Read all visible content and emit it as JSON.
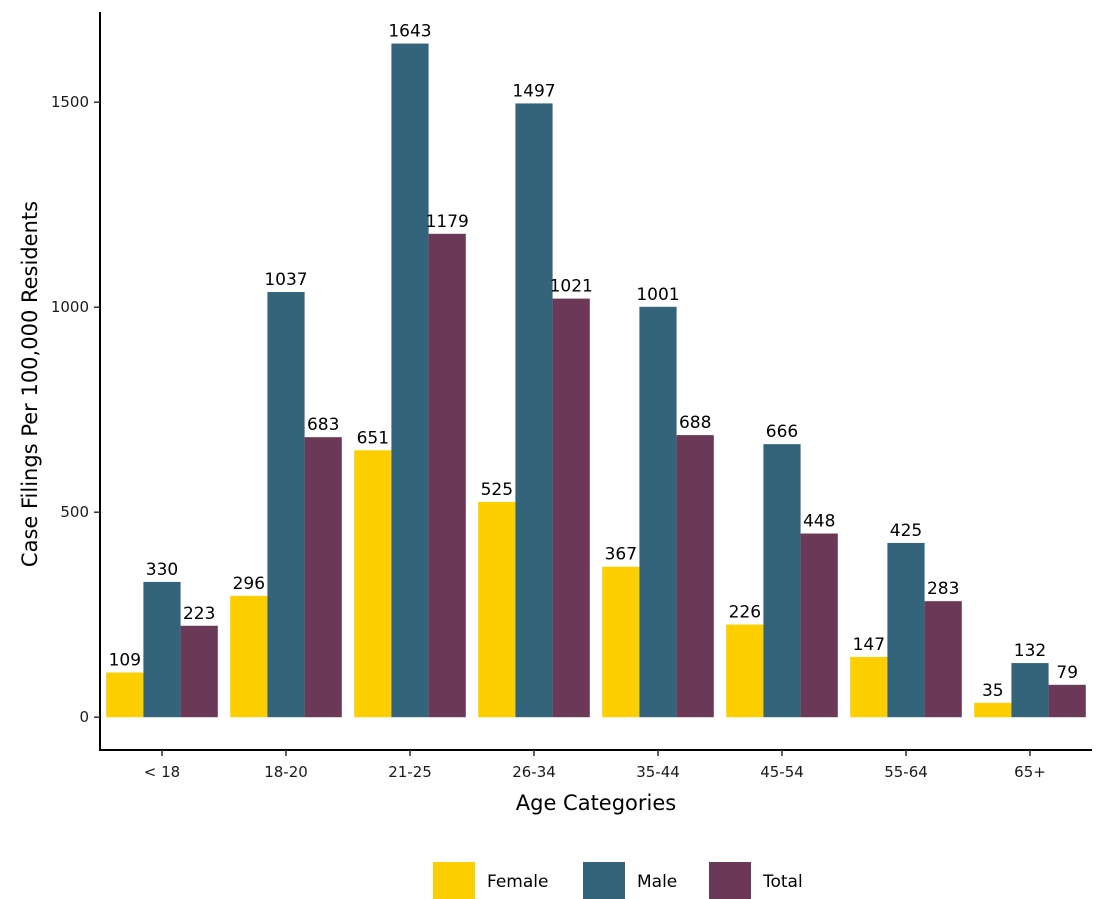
{
  "chart_data": {
    "type": "bar",
    "title": "",
    "xlabel": "Age Categories",
    "ylabel": "Case Filings Per 100,000 Residents",
    "categories": [
      "< 18",
      "18-20",
      "21-25",
      "26-34",
      "35-44",
      "45-54",
      "55-64",
      "65+"
    ],
    "series": [
      {
        "name": "Female",
        "color": "#FDCF00",
        "values": [
          109,
          296,
          651,
          525,
          367,
          226,
          147,
          35
        ]
      },
      {
        "name": "Male",
        "color": "#34647C",
        "values": [
          330,
          1037,
          1643,
          1497,
          1001,
          666,
          425,
          132
        ]
      },
      {
        "name": "Total",
        "color": "#6B3858",
        "values": [
          223,
          683,
          1179,
          1021,
          688,
          448,
          283,
          79
        ]
      }
    ],
    "ylim": [
      -80,
      1720
    ],
    "yticks": [
      0,
      500,
      1000,
      1500
    ],
    "grid": false,
    "legend_position": "bottom",
    "data_labels": true
  }
}
